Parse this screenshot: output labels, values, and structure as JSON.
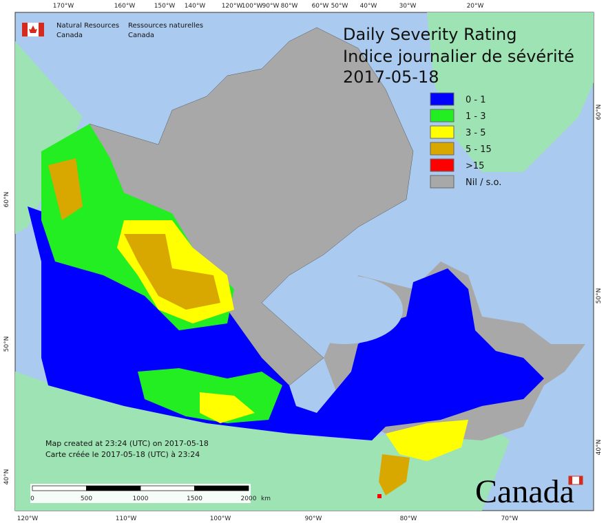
{
  "header": {
    "logo_en": [
      "Natural Resources",
      "Canada"
    ],
    "logo_fr": [
      "Ressources naturelles",
      "Canada"
    ]
  },
  "title": {
    "lines": [
      "Daily Severity Rating",
      "Indice journalier de sévérité",
      "2017-05-18"
    ]
  },
  "legend": [
    {
      "label": "0 - 1",
      "color": "#0000ff"
    },
    {
      "label": "1 - 3",
      "color": "#22ee22"
    },
    {
      "label": "3 - 5",
      "color": "#ffff00"
    },
    {
      "label": "5 - 15",
      "color": "#d9a800"
    },
    {
      "label": ">15",
      "color": "#ff0000"
    },
    {
      "label": "Nil / s.o.",
      "color": "#a8a8a8"
    }
  ],
  "graticule": {
    "top": [
      "170°W",
      "160°W",
      "150°W",
      "140°W",
      "120°W",
      "100°W",
      "90°W",
      "80°W",
      "60°W",
      "50°W",
      "40°W",
      "30°W",
      "20°W"
    ],
    "bottom": [
      "120°W",
      "110°W",
      "100°W",
      "90°W",
      "80°W",
      "70°W"
    ],
    "left": [
      "60°N",
      "50°N",
      "40°N"
    ],
    "right": [
      "60°N",
      "50°N",
      "40°N"
    ]
  },
  "notes": [
    "Map created at 23:24 (UTC) on 2017-05-18",
    "Carte créée le 2017-05-18 (UTC) à 23:24"
  ],
  "scale_bar": {
    "labels": [
      "0",
      "500",
      "1000",
      "1500",
      "2000"
    ],
    "unit": "km"
  },
  "wordmark": "Canada"
}
